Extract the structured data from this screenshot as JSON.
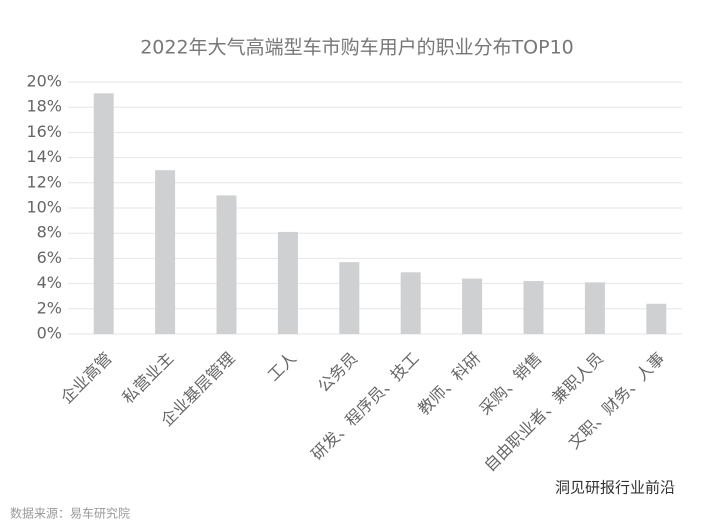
{
  "chart_data": {
    "type": "bar",
    "title": "2022年大气高端型车市购车用户的职业分布TOP10",
    "categories": [
      "企业高管",
      "私营业主",
      "企业基层管理",
      "工人",
      "公务员",
      "研发、程序员、技工",
      "教师、科研",
      "采购、销售",
      "自由职业者、兼职人员",
      "文职、财务、人事"
    ],
    "values": [
      19.1,
      13.0,
      11.0,
      8.1,
      5.7,
      4.9,
      4.4,
      4.2,
      4.1,
      2.4
    ],
    "color": "#cfd0d2",
    "ylim": [
      0,
      20
    ],
    "yticks": [
      {
        "value": 0,
        "label": "0%"
      },
      {
        "value": 2,
        "label": "2%"
      },
      {
        "value": 4,
        "label": "4%"
      },
      {
        "value": 6,
        "label": "6%"
      },
      {
        "value": 8,
        "label": "8%"
      },
      {
        "value": 10,
        "label": "10%"
      },
      {
        "value": 12,
        "label": "12%"
      },
      {
        "value": 14,
        "label": "14%"
      },
      {
        "value": 16,
        "label": "16%"
      },
      {
        "value": 18,
        "label": "18%"
      },
      {
        "value": 20,
        "label": "20%"
      }
    ],
    "grid": true,
    "footer_note": "洞见研报行业前沿",
    "source": "数据来源：易车研究院"
  }
}
